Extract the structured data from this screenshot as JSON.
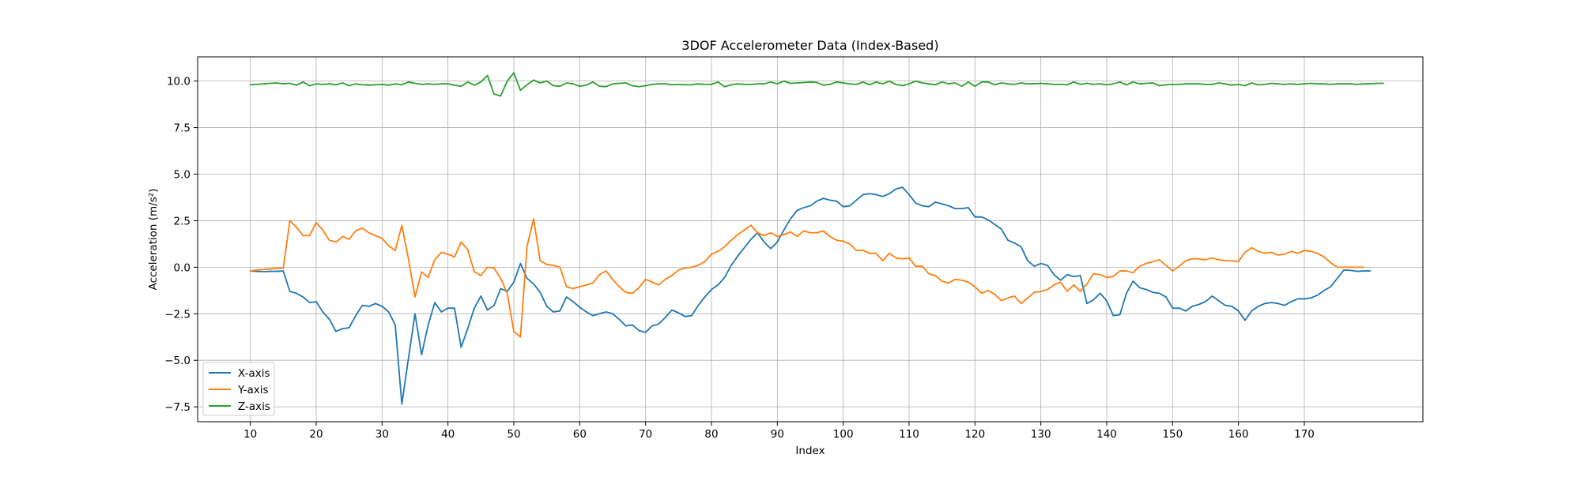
{
  "chart_data": {
    "type": "line",
    "title": "3DOF Accelerometer Data (Index-Based)",
    "xlabel": "Index",
    "ylabel": "Acceleration (m/s²)",
    "xlim": [
      2,
      188
    ],
    "ylim": [
      -8.3,
      11.3
    ],
    "xticks": [
      10,
      20,
      30,
      40,
      50,
      60,
      70,
      80,
      90,
      100,
      110,
      120,
      130,
      140,
      150,
      160,
      170
    ],
    "xtick_labels": [
      "10",
      "20",
      "30",
      "40",
      "50",
      "60",
      "70",
      "80",
      "90",
      "100",
      "110",
      "120",
      "130",
      "140",
      "150",
      "160",
      "170"
    ],
    "yticks": [
      -7.5,
      -5,
      -2.5,
      0,
      2.5,
      5,
      7.5,
      10
    ],
    "ytick_labels": [
      "−7.5",
      "−5.0",
      "−2.5",
      "0.0",
      "2.5",
      "5.0",
      "7.5",
      "10.0"
    ],
    "grid": true,
    "legend_position": "lower-left",
    "x_start": 10,
    "series": [
      {
        "name": "X-axis",
        "color": "#1f77b4",
        "values": [
          -0.2,
          -0.22,
          -0.24,
          -0.22,
          -0.22,
          -0.2,
          -1.3,
          -1.4,
          -1.6,
          -1.9,
          -1.85,
          -2.4,
          -2.8,
          -3.45,
          -3.3,
          -3.25,
          -2.6,
          -2.05,
          -2.1,
          -1.95,
          -2.1,
          -2.4,
          -3.1,
          -7.35,
          -4.9,
          -2.5,
          -4.7,
          -3.1,
          -1.9,
          -2.4,
          -2.2,
          -2.2,
          -4.3,
          -3.3,
          -2.2,
          -1.55,
          -2.3,
          -2.05,
          -1.15,
          -1.3,
          -0.8,
          0.2,
          -0.6,
          -0.9,
          -1.35,
          -2.1,
          -2.4,
          -2.35,
          -1.6,
          -1.85,
          -2.15,
          -2.4,
          -2.6,
          -2.5,
          -2.4,
          -2.5,
          -2.8,
          -3.15,
          -3.1,
          -3.4,
          -3.5,
          -3.15,
          -3.05,
          -2.7,
          -2.3,
          -2.45,
          -2.65,
          -2.6,
          -2.05,
          -1.6,
          -1.2,
          -0.95,
          -0.55,
          0.1,
          0.6,
          1.05,
          1.5,
          1.85,
          1.35,
          1.0,
          1.35,
          2.0,
          2.6,
          3.05,
          3.2,
          3.3,
          3.55,
          3.7,
          3.6,
          3.55,
          3.25,
          3.3,
          3.6,
          3.9,
          3.95,
          3.9,
          3.8,
          3.95,
          4.2,
          4.3,
          3.9,
          3.45,
          3.3,
          3.25,
          3.5,
          3.4,
          3.3,
          3.15,
          3.15,
          3.2,
          2.7,
          2.7,
          2.55,
          2.3,
          2.05,
          1.45,
          1.3,
          1.1,
          0.35,
          0.05,
          0.2,
          0.1,
          -0.4,
          -0.7,
          -0.4,
          -0.5,
          -0.45,
          -1.95,
          -1.75,
          -1.4,
          -1.8,
          -2.6,
          -2.55,
          -1.4,
          -0.75,
          -1.1,
          -1.2,
          -1.35,
          -1.4,
          -1.6,
          -2.2,
          -2.2,
          -2.35,
          -2.1,
          -2.0,
          -1.85,
          -1.55,
          -1.8,
          -2.05,
          -2.1,
          -2.35,
          -2.85,
          -2.35,
          -2.1,
          -1.95,
          -1.9,
          -1.95,
          -2.05,
          -1.85,
          -1.7,
          -1.7,
          -1.65,
          -1.5,
          -1.25,
          -1.05,
          -0.6,
          -0.15,
          -0.17,
          -0.22,
          -0.2,
          -0.2
        ]
      },
      {
        "name": "Y-axis",
        "color": "#ff7f0e",
        "values": [
          -0.2,
          -0.15,
          -0.12,
          -0.1,
          -0.05,
          -0.05,
          2.5,
          2.15,
          1.7,
          1.7,
          2.4,
          2.0,
          1.45,
          1.35,
          1.65,
          1.5,
          1.95,
          2.1,
          1.85,
          1.7,
          1.55,
          1.15,
          0.9,
          2.25,
          0.45,
          -1.6,
          -0.25,
          -0.55,
          0.4,
          0.8,
          0.7,
          0.55,
          1.35,
          0.95,
          -0.25,
          -0.45,
          0.0,
          -0.05,
          -0.6,
          -1.4,
          -3.45,
          -3.75,
          1.1,
          2.6,
          0.35,
          0.15,
          0.1,
          0.0,
          -1.05,
          -1.15,
          -1.05,
          -0.95,
          -0.85,
          -0.4,
          -0.2,
          -0.65,
          -1.05,
          -1.35,
          -1.4,
          -1.1,
          -0.65,
          -0.8,
          -0.95,
          -0.65,
          -0.45,
          -0.15,
          -0.05,
          0.0,
          0.1,
          0.3,
          0.7,
          0.85,
          1.1,
          1.45,
          1.75,
          2.0,
          2.25,
          1.85,
          1.7,
          1.85,
          1.65,
          1.75,
          1.9,
          1.65,
          1.95,
          1.85,
          1.85,
          1.95,
          1.65,
          1.45,
          1.4,
          1.25,
          0.9,
          0.9,
          0.75,
          0.75,
          0.35,
          0.75,
          0.5,
          0.45,
          0.5,
          0.05,
          0.05,
          -0.35,
          -0.45,
          -0.75,
          -0.85,
          -0.65,
          -0.7,
          -0.8,
          -1.05,
          -1.4,
          -1.25,
          -1.45,
          -1.8,
          -1.65,
          -1.55,
          -1.95,
          -1.65,
          -1.35,
          -1.3,
          -1.2,
          -0.95,
          -0.8,
          -1.3,
          -0.95,
          -1.3,
          -0.9,
          -0.35,
          -0.4,
          -0.55,
          -0.5,
          -0.2,
          -0.2,
          -0.3,
          0.05,
          0.2,
          0.3,
          0.4,
          0.1,
          -0.2,
          0.05,
          0.35,
          0.45,
          0.45,
          0.4,
          0.5,
          0.4,
          0.35,
          0.35,
          0.3,
          0.8,
          1.05,
          0.85,
          0.75,
          0.8,
          0.65,
          0.7,
          0.85,
          0.75,
          0.9,
          0.85,
          0.75,
          0.55,
          0.25,
          0.0,
          0.0,
          0.0,
          0.0,
          0.0
        ]
      },
      {
        "name": "Z-axis",
        "color": "#2ca02c",
        "values": [
          9.8,
          9.82,
          9.85,
          9.88,
          9.9,
          9.85,
          9.88,
          9.78,
          9.95,
          9.75,
          9.85,
          9.82,
          9.85,
          9.8,
          9.9,
          9.75,
          9.85,
          9.8,
          9.78,
          9.8,
          9.82,
          9.78,
          9.85,
          9.8,
          9.95,
          9.88,
          9.82,
          9.85,
          9.82,
          9.85,
          9.85,
          9.78,
          9.72,
          9.95,
          9.78,
          9.95,
          10.3,
          9.3,
          9.2,
          10.0,
          10.45,
          9.5,
          9.8,
          10.05,
          9.9,
          10.0,
          9.75,
          9.72,
          9.9,
          9.85,
          9.72,
          9.78,
          9.95,
          9.72,
          9.7,
          9.85,
          9.88,
          9.9,
          9.75,
          9.7,
          9.75,
          9.82,
          9.85,
          9.85,
          9.8,
          9.82,
          9.8,
          9.8,
          9.85,
          9.82,
          9.82,
          9.95,
          9.7,
          9.8,
          9.85,
          9.82,
          9.82,
          9.85,
          9.85,
          9.95,
          9.85,
          10.0,
          9.88,
          9.9,
          9.92,
          9.95,
          9.92,
          9.78,
          9.82,
          9.95,
          9.9,
          9.85,
          9.82,
          9.95,
          9.8,
          9.95,
          9.85,
          10.0,
          9.82,
          9.75,
          9.85,
          10.0,
          9.9,
          9.85,
          9.8,
          9.95,
          9.85,
          9.9,
          9.72,
          9.95,
          9.72,
          9.95,
          9.95,
          9.8,
          9.9,
          9.85,
          9.82,
          9.9,
          9.85,
          9.85,
          9.88,
          9.85,
          9.82,
          9.82,
          9.8,
          9.95,
          9.82,
          9.88,
          9.82,
          9.85,
          9.8,
          9.85,
          9.95,
          9.8,
          9.95,
          9.85,
          9.88,
          9.9,
          9.75,
          9.8,
          9.82,
          9.82,
          9.85,
          9.85,
          9.85,
          9.82,
          9.82,
          9.9,
          9.85,
          9.78,
          9.82,
          9.75,
          9.9,
          9.8,
          9.82,
          9.88,
          9.85,
          9.82,
          9.85,
          9.82,
          9.85,
          9.88,
          9.85,
          9.85,
          9.82,
          9.85,
          9.85,
          9.85,
          9.82,
          9.85,
          9.85,
          9.88,
          9.88
        ]
      }
    ]
  }
}
